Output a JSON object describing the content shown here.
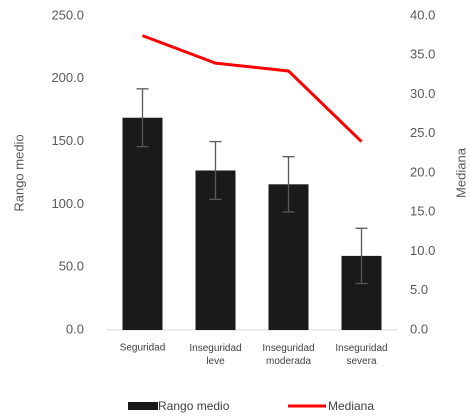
{
  "chart_data": {
    "type": "bar-line",
    "categories": [
      "Seguridad",
      "Inseguridad leve",
      "Inseguridad moderada",
      "Inseguridad severa"
    ],
    "ylabel": "Rango medio",
    "y2label": "Mediana",
    "ylim": [
      0,
      250
    ],
    "yticks": [
      {
        "value": 0,
        "label": "0.0"
      },
      {
        "value": 50,
        "label": "50.0"
      },
      {
        "value": 100,
        "label": "100.0"
      },
      {
        "value": 150,
        "label": "150.0"
      },
      {
        "value": 200,
        "label": "200.0"
      },
      {
        "value": 250,
        "label": "250.0"
      }
    ],
    "y2lim": [
      0,
      40
    ],
    "y2ticks": [
      {
        "value": 0,
        "label": "0.0"
      },
      {
        "value": 5,
        "label": "5.0"
      },
      {
        "value": 10,
        "label": "10.0"
      },
      {
        "value": 15,
        "label": "15.0"
      },
      {
        "value": 20,
        "label": "20.0"
      },
      {
        "value": 25,
        "label": "25.0"
      },
      {
        "value": 30,
        "label": "30.0"
      },
      {
        "value": 35,
        "label": "35.0"
      },
      {
        "value": 40,
        "label": "40.0"
      }
    ],
    "series": [
      {
        "name": "Rango medio",
        "type": "bar",
        "color": "#1a1a1a",
        "values": [
          169,
          127,
          116,
          59
        ],
        "errors": [
          23,
          23,
          22,
          22
        ],
        "error_color": "#595959"
      },
      {
        "name": "Mediana",
        "type": "line",
        "axis": "y2",
        "color": "#ff0000",
        "values": [
          37.5,
          34,
          33,
          24
        ]
      }
    ]
  }
}
